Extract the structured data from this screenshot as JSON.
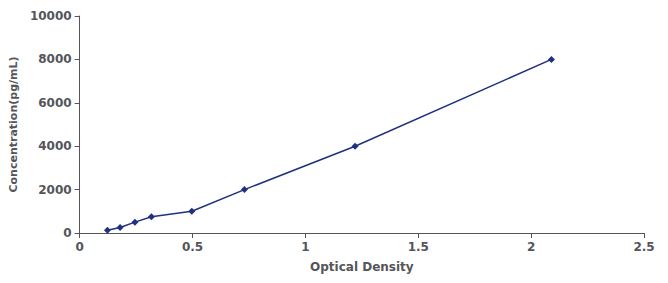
{
  "chart_data": {
    "type": "line",
    "x": [
      0.123,
      0.179,
      0.245,
      0.318,
      0.497,
      0.73,
      1.22,
      2.09
    ],
    "values": [
      125,
      250,
      500,
      750,
      1000,
      2000,
      4000,
      8000
    ],
    "color": "#1f3080",
    "marker": "diamond",
    "line_style": "solid",
    "xlabel": "Optical Density",
    "ylabel": "Concentration(pg/mL)",
    "xlim": [
      0,
      2.5
    ],
    "ylim": [
      0,
      10000
    ],
    "xticks": [
      0,
      0.5,
      1,
      1.5,
      2,
      2.5
    ],
    "yticks": [
      0,
      2000,
      4000,
      6000,
      8000,
      10000
    ],
    "grid": false
  }
}
